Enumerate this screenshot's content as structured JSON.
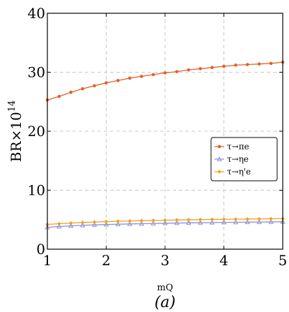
{
  "chart_data": {
    "type": "line",
    "title": "",
    "xlabel": "mQ",
    "ylabel_base": "BR×10",
    "ylabel_exponent": "14",
    "caption": "(a)",
    "xlim": [
      1,
      5
    ],
    "ylim": [
      0,
      40
    ],
    "xticks": [
      1,
      2,
      3,
      4,
      5
    ],
    "yticks": [
      0,
      10,
      20,
      30,
      40
    ],
    "grid": true,
    "legend_position": "right",
    "x": [
      1.0,
      1.2,
      1.4,
      1.6,
      1.8,
      2.0,
      2.2,
      2.4,
      2.6,
      2.8,
      3.0,
      3.2,
      3.4,
      3.6,
      3.8,
      4.0,
      4.2,
      4.4,
      4.6,
      4.8,
      5.0
    ],
    "series": [
      {
        "name": "τ→πe",
        "color": "#e0612b",
        "marker": "circle",
        "values": [
          25.3,
          25.9,
          26.6,
          27.2,
          27.7,
          28.2,
          28.6,
          29.0,
          29.3,
          29.6,
          29.9,
          30.1,
          30.4,
          30.6,
          30.8,
          31.0,
          31.2,
          31.3,
          31.4,
          31.5,
          31.7
        ]
      },
      {
        "name": "τ→ηe",
        "color": "#8c8fd6",
        "marker": "triangle",
        "values": [
          3.7,
          3.85,
          3.95,
          4.05,
          4.12,
          4.18,
          4.23,
          4.28,
          4.32,
          4.36,
          4.4,
          4.43,
          4.46,
          4.49,
          4.51,
          4.54,
          4.56,
          4.58,
          4.6,
          4.62,
          4.65
        ]
      },
      {
        "name": "τ→η'e",
        "color": "#f0a020",
        "marker": "diamond",
        "values": [
          4.2,
          4.32,
          4.42,
          4.52,
          4.6,
          4.67,
          4.73,
          4.78,
          4.83,
          4.87,
          4.91,
          4.95,
          4.98,
          5.01,
          5.04,
          5.06,
          5.09,
          5.11,
          5.13,
          5.15,
          5.18
        ]
      }
    ]
  }
}
